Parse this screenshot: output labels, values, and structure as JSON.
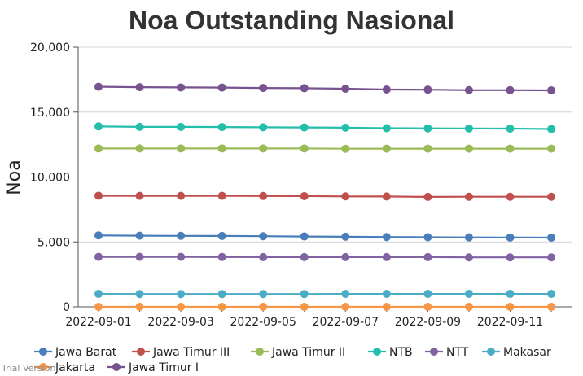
{
  "chart_data": {
    "type": "line",
    "title": "Noa Outstanding Nasional",
    "xlabel": "",
    "ylabel": "Noa",
    "ylim": [
      0,
      20000
    ],
    "yticks": [
      "0",
      "5,000",
      "10,000",
      "15,000",
      "20,000"
    ],
    "x": [
      "2022-09-01",
      "2022-09-02",
      "2022-09-03",
      "2022-09-04",
      "2022-09-05",
      "2022-09-06",
      "2022-09-07",
      "2022-09-08",
      "2022-09-09",
      "2022-09-10",
      "2022-09-11",
      "2022-09-12"
    ],
    "xtick_labels": [
      "2022-09-01",
      "2022-09-03",
      "2022-09-05",
      "2022-09-07",
      "2022-09-09",
      "2022-09-11"
    ],
    "grid": "horizontal",
    "legend_position": "bottom",
    "series": [
      {
        "name": "Jawa Barat",
        "color": "#4a7ebb",
        "values": [
          5500,
          5480,
          5470,
          5460,
          5440,
          5420,
          5400,
          5380,
          5360,
          5350,
          5340,
          5330
        ]
      },
      {
        "name": "Jawa Timur III",
        "color": "#c0504d",
        "values": [
          8560,
          8550,
          8550,
          8550,
          8540,
          8530,
          8510,
          8500,
          8470,
          8480,
          8480,
          8480
        ]
      },
      {
        "name": "Jawa Timur II",
        "color": "#9bbb59",
        "values": [
          12200,
          12200,
          12200,
          12200,
          12200,
          12200,
          12180,
          12190,
          12190,
          12190,
          12190,
          12190
        ]
      },
      {
        "name": "NTB",
        "color": "#23bfaa",
        "values": [
          13900,
          13860,
          13860,
          13850,
          13830,
          13820,
          13800,
          13760,
          13750,
          13740,
          13730,
          13700
        ]
      },
      {
        "name": "NTT",
        "color": "#8064a2",
        "values": [
          3850,
          3850,
          3850,
          3840,
          3830,
          3830,
          3830,
          3830,
          3830,
          3810,
          3810,
          3810
        ]
      },
      {
        "name": "Makasar",
        "color": "#4bacc6",
        "values": [
          1000,
          990,
          990,
          990,
          990,
          990,
          1000,
          1000,
          1000,
          1000,
          1000,
          1000
        ]
      },
      {
        "name": "Jakarta",
        "color": "#f79646",
        "values": [
          0,
          0,
          0,
          0,
          0,
          0,
          0,
          0,
          0,
          0,
          0,
          0
        ]
      },
      {
        "name": "Jawa Timur I",
        "color": "#77548f",
        "values": [
          16950,
          16920,
          16900,
          16890,
          16860,
          16840,
          16800,
          16740,
          16730,
          16690,
          16690,
          16680
        ]
      }
    ]
  },
  "watermark": "Trial Version"
}
